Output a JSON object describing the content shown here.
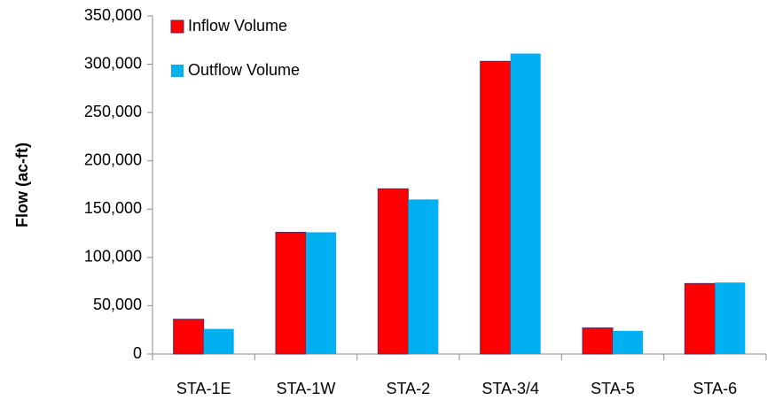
{
  "chart_data": {
    "type": "bar",
    "y_label": "Flow (ac-ft)",
    "categories": [
      "STA-1E",
      "STA-1W",
      "STA-2",
      "STA-3/4",
      "STA-5",
      "STA-6"
    ],
    "series": [
      {
        "name": "Inflow Volume",
        "color": "#ff0000",
        "values": [
          36000,
          126000,
          171000,
          303000,
          27000,
          73000
        ]
      },
      {
        "name": "Outflow Volume",
        "color": "#00b0f0",
        "values": [
          26000,
          126000,
          160000,
          311000,
          24000,
          74000
        ]
      }
    ],
    "ylim": [
      0,
      350000
    ],
    "yticks": [
      0,
      {
        "value": 50000,
        "label": "50,000"
      },
      {
        "value": 100000,
        "label": "100,000"
      },
      {
        "value": 150000,
        "label": "150,000"
      },
      {
        "value": 200000,
        "label": "200,000"
      },
      {
        "value": 250000,
        "label": "250,000"
      },
      {
        "value": 300000,
        "label": "300,000"
      },
      {
        "value": 350000,
        "label": "350,000"
      }
    ],
    "grid": false,
    "legend": "top-left"
  }
}
